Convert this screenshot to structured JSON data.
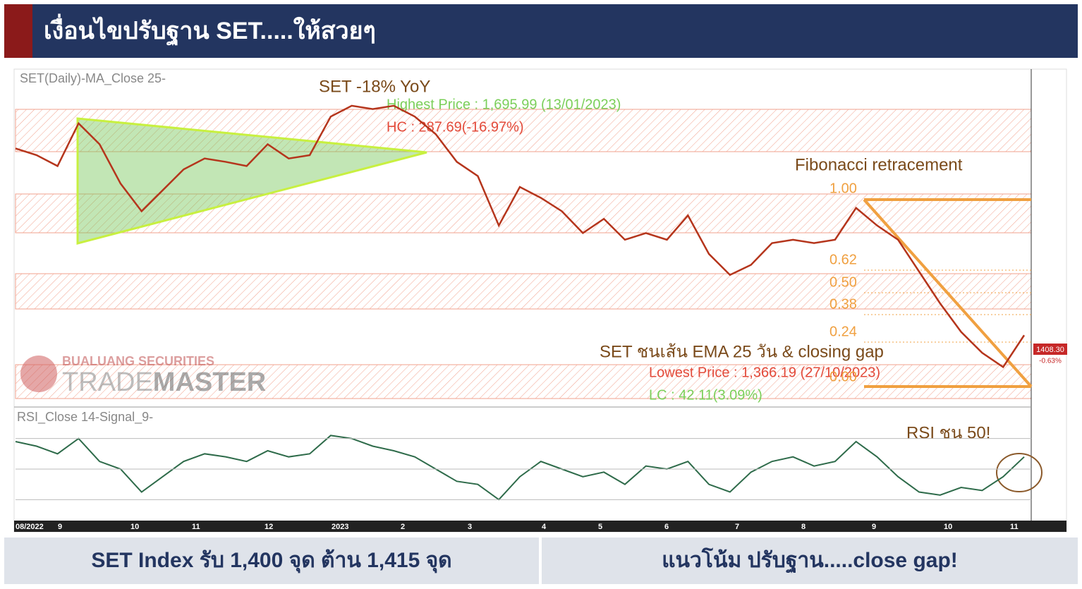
{
  "header": {
    "title": "เงื่อนไขปรับฐาน SET.....ให้สวยๆ"
  },
  "chart": {
    "type": "line",
    "panel_label": "SET(Daily)-MA_Close 25-",
    "ylim": [
      1340,
      1740
    ],
    "values": [
      1647,
      1639,
      1626,
      1677,
      1652,
      1605,
      1572,
      1597,
      1622,
      1635,
      1631,
      1626,
      1652,
      1635,
      1639,
      1685,
      1698,
      1694,
      1698,
      1685,
      1664,
      1631,
      1614,
      1555,
      1601,
      1588,
      1572,
      1546,
      1563,
      1538,
      1546,
      1538,
      1567,
      1521,
      1496,
      1508,
      1534,
      1538,
      1534,
      1538,
      1576,
      1555,
      1538,
      1500,
      1462,
      1428,
      1403,
      1386,
      1424
    ],
    "color": "#b5351c",
    "x_labels": [
      "08/2022",
      "9",
      "10",
      "11",
      "12",
      "2023",
      "2",
      "3",
      "4",
      "5",
      "6",
      "7",
      "8",
      "9",
      "10",
      "11"
    ],
    "annotations": {
      "yoy": "SET -18% YoY",
      "highest": "Highest Price : 1,695.99 (13/01/2023)",
      "hc": "HC : 287.69(-16.97%)",
      "fib_title": "Fibonacci retracement",
      "ema": "SET ชนเส้น EMA 25 วัน & closing gap",
      "lowest": "Lowest Price : 1,366.19 (27/10/2023)",
      "lc": "LC : 42.11(3.09%)",
      "last_price": "1408.30",
      "change": "-0.63%",
      "rsi_note": "RSI ชน 50!"
    },
    "fib_levels": [
      "1.00",
      "0.62",
      "0.50",
      "0.38",
      "0.24",
      "0.00"
    ],
    "watermark": {
      "company": "BUALUANG SECURITIES",
      "brand_a": "TRADE",
      "brand_b": "MASTER"
    }
  },
  "rsi": {
    "type": "line",
    "panel_label": "RSI_Close 14-Signal_9-",
    "ylim": [
      20,
      80
    ],
    "yticks": [
      30,
      50,
      70
    ],
    "color": "#2e6b4a",
    "values": [
      68,
      65,
      60,
      70,
      55,
      50,
      35,
      45,
      55,
      60,
      58,
      55,
      62,
      58,
      60,
      72,
      70,
      65,
      62,
      58,
      50,
      42,
      40,
      30,
      45,
      55,
      50,
      45,
      48,
      40,
      52,
      50,
      55,
      40,
      35,
      48,
      55,
      58,
      52,
      55,
      68,
      58,
      45,
      35,
      33,
      38,
      36,
      45,
      58
    ]
  },
  "footer": {
    "left": "SET Index รับ 1,400 จุด ต้าน 1,415 จุด",
    "right": "แนวโน้ม ปรับฐาน.....close gap!"
  }
}
